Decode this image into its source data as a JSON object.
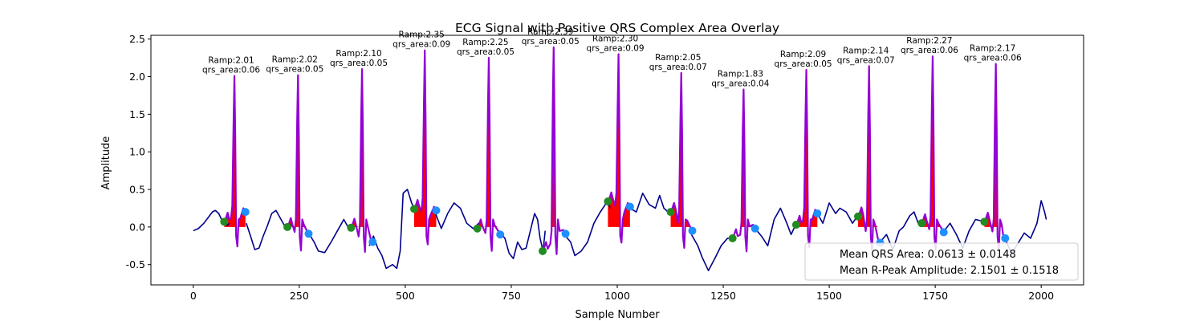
{
  "chart_data": {
    "type": "line",
    "title": "ECG Signal with Positive QRS Complex Area Overlay",
    "xlabel": "Sample Number",
    "ylabel": "Amplitude",
    "xlim": [
      -100,
      2100
    ],
    "ylim": [
      -0.77,
      2.55
    ],
    "xticks": [
      0,
      250,
      500,
      750,
      1000,
      1250,
      1500,
      1750,
      2000
    ],
    "yticks": [
      -0.5,
      0.0,
      0.5,
      1.0,
      1.5,
      2.0,
      2.5
    ],
    "grid": false,
    "colors": {
      "signal": "#00008b",
      "qrs_segment": "#9400d3",
      "qrs_area_fill": "#ff0000",
      "qrs_onset_marker": "#228b22",
      "qrs_offset_marker": "#1e90ff"
    },
    "baseline": [
      [
        0,
        -0.05
      ],
      [
        12,
        -0.02
      ],
      [
        25,
        0.05
      ],
      [
        37,
        0.14
      ],
      [
        45,
        0.2
      ],
      [
        52,
        0.22
      ],
      [
        60,
        0.18
      ],
      [
        65,
        0.12
      ],
      [
        70,
        0.04
      ],
      [
        75,
        0.06
      ],
      [
        80,
        0.02
      ],
      [
        85,
        0.05
      ],
      [
        125,
        0.05
      ],
      [
        135,
        -0.12
      ],
      [
        145,
        -0.3
      ],
      [
        155,
        -0.28
      ],
      [
        165,
        -0.12
      ],
      [
        175,
        0.02
      ],
      [
        185,
        0.18
      ],
      [
        195,
        0.22
      ],
      [
        205,
        0.12
      ],
      [
        215,
        0.02
      ],
      [
        220,
        0.0
      ],
      [
        230,
        0.04
      ],
      [
        270,
        -0.06
      ],
      [
        285,
        -0.2
      ],
      [
        295,
        -0.32
      ],
      [
        310,
        -0.34
      ],
      [
        325,
        -0.2
      ],
      [
        340,
        -0.05
      ],
      [
        355,
        0.1
      ],
      [
        365,
        0.0
      ],
      [
        370,
        -0.02
      ],
      [
        378,
        0.05
      ],
      [
        415,
        -0.25
      ],
      [
        425,
        -0.12
      ],
      [
        435,
        -0.28
      ],
      [
        445,
        -0.38
      ],
      [
        455,
        -0.55
      ],
      [
        470,
        -0.5
      ],
      [
        480,
        -0.55
      ],
      [
        488,
        -0.32
      ],
      [
        495,
        0.45
      ],
      [
        505,
        0.5
      ],
      [
        515,
        0.32
      ],
      [
        521,
        0.25
      ],
      [
        525,
        0.2
      ],
      [
        570,
        0.2
      ],
      [
        585,
        -0.02
      ],
      [
        600,
        0.18
      ],
      [
        615,
        0.32
      ],
      [
        630,
        0.25
      ],
      [
        645,
        0.05
      ],
      [
        660,
        -0.02
      ],
      [
        668,
        0.02
      ],
      [
        675,
        0.06
      ],
      [
        720,
        -0.05
      ],
      [
        735,
        -0.15
      ],
      [
        745,
        -0.35
      ],
      [
        755,
        -0.42
      ],
      [
        765,
        -0.2
      ],
      [
        775,
        -0.3
      ],
      [
        785,
        -0.28
      ],
      [
        795,
        -0.05
      ],
      [
        805,
        0.18
      ],
      [
        812,
        0.1
      ],
      [
        818,
        -0.15
      ],
      [
        825,
        -0.32
      ],
      [
        830,
        -0.05
      ],
      [
        875,
        -0.1
      ],
      [
        890,
        -0.2
      ],
      [
        900,
        -0.38
      ],
      [
        915,
        -0.32
      ],
      [
        930,
        -0.2
      ],
      [
        945,
        0.05
      ],
      [
        960,
        0.2
      ],
      [
        972,
        0.3
      ],
      [
        978,
        0.34
      ],
      [
        983,
        0.25
      ],
      [
        1030,
        0.25
      ],
      [
        1045,
        0.2
      ],
      [
        1060,
        0.45
      ],
      [
        1075,
        0.3
      ],
      [
        1090,
        0.25
      ],
      [
        1100,
        0.42
      ],
      [
        1110,
        0.25
      ],
      [
        1120,
        0.2
      ],
      [
        1126,
        0.22
      ],
      [
        1175,
        -0.1
      ],
      [
        1190,
        -0.25
      ],
      [
        1200,
        -0.4
      ],
      [
        1215,
        -0.58
      ],
      [
        1230,
        -0.42
      ],
      [
        1245,
        -0.25
      ],
      [
        1260,
        -0.15
      ],
      [
        1272,
        -0.15
      ],
      [
        1280,
        -0.05
      ],
      [
        1325,
        -0.02
      ],
      [
        1340,
        -0.12
      ],
      [
        1355,
        -0.25
      ],
      [
        1370,
        0.1
      ],
      [
        1385,
        0.25
      ],
      [
        1400,
        0.05
      ],
      [
        1410,
        -0.1
      ],
      [
        1420,
        0.02
      ],
      [
        1428,
        0.05
      ],
      [
        1472,
        0.18
      ],
      [
        1485,
        0.05
      ],
      [
        1500,
        0.32
      ],
      [
        1515,
        0.18
      ],
      [
        1525,
        0.25
      ],
      [
        1540,
        0.2
      ],
      [
        1555,
        0.05
      ],
      [
        1566,
        0.14
      ],
      [
        1572,
        0.18
      ],
      [
        1620,
        -0.2
      ],
      [
        1635,
        -0.1
      ],
      [
        1650,
        -0.3
      ],
      [
        1665,
        -0.05
      ],
      [
        1675,
        0.0
      ],
      [
        1690,
        0.15
      ],
      [
        1700,
        0.2
      ],
      [
        1710,
        0.05
      ],
      [
        1716,
        0.04
      ],
      [
        1722,
        0.08
      ],
      [
        1770,
        -0.06
      ],
      [
        1785,
        0.05
      ],
      [
        1800,
        -0.1
      ],
      [
        1815,
        -0.28
      ],
      [
        1830,
        -0.05
      ],
      [
        1845,
        0.1
      ],
      [
        1860,
        0.08
      ],
      [
        1865,
        0.07
      ],
      [
        1870,
        0.1
      ],
      [
        1915,
        -0.16
      ],
      [
        1930,
        -0.35
      ],
      [
        1945,
        -0.22
      ],
      [
        1960,
        -0.08
      ],
      [
        1975,
        -0.15
      ],
      [
        1990,
        0.05
      ],
      [
        2000,
        0.35
      ],
      [
        2008,
        0.2
      ],
      [
        2012,
        0.1
      ]
    ],
    "beats": [
      {
        "onset_x": 73,
        "onset_y": 0.07,
        "peak_x": 97,
        "peak_y": 2.01,
        "offset_x": 123,
        "offset_y": 0.2,
        "ramp_label": "Ramp:2.01",
        "area_label": "qrs_area:0.06"
      },
      {
        "onset_x": 222,
        "onset_y": 0.0,
        "peak_x": 247,
        "peak_y": 2.02,
        "offset_x": 272,
        "offset_y": -0.09,
        "ramp_label": "Ramp:2.02",
        "area_label": "qrs_area:0.05"
      },
      {
        "onset_x": 372,
        "onset_y": -0.01,
        "peak_x": 398,
        "peak_y": 2.1,
        "offset_x": 423,
        "offset_y": -0.2,
        "ramp_label": "Ramp:2.10",
        "area_label": "qrs_area:0.05"
      },
      {
        "onset_x": 521,
        "onset_y": 0.24,
        "peak_x": 546,
        "peak_y": 2.35,
        "offset_x": 573,
        "offset_y": 0.22,
        "ramp_label": "Ramp:2.35",
        "area_label": "qrs_area:0.09"
      },
      {
        "onset_x": 670,
        "onset_y": -0.02,
        "peak_x": 697,
        "peak_y": 2.25,
        "offset_x": 724,
        "offset_y": -0.1,
        "ramp_label": "Ramp:2.25",
        "area_label": "qrs_area:0.05"
      },
      {
        "onset_x": 824,
        "onset_y": -0.32,
        "peak_x": 850,
        "peak_y": 2.39,
        "offset_x": 878,
        "offset_y": -0.09,
        "ramp_label": "Ramp:2.39",
        "area_label": "qrs_area:0.05"
      },
      {
        "onset_x": 978,
        "onset_y": 0.34,
        "peak_x": 1003,
        "peak_y": 2.3,
        "offset_x": 1030,
        "offset_y": 0.27,
        "ramp_label": "Ramp:2.30",
        "area_label": "qrs_area:0.09"
      },
      {
        "onset_x": 1126,
        "onset_y": 0.2,
        "peak_x": 1151,
        "peak_y": 2.05,
        "offset_x": 1177,
        "offset_y": -0.05,
        "ramp_label": "Ramp:2.05",
        "area_label": "qrs_area:0.07"
      },
      {
        "onset_x": 1272,
        "onset_y": -0.15,
        "peak_x": 1298,
        "peak_y": 1.83,
        "offset_x": 1325,
        "offset_y": -0.02,
        "ramp_label": "Ramp:1.83",
        "area_label": "qrs_area:0.04"
      },
      {
        "onset_x": 1422,
        "onset_y": 0.03,
        "peak_x": 1446,
        "peak_y": 2.09,
        "offset_x": 1472,
        "offset_y": 0.18,
        "ramp_label": "Ramp:2.09",
        "area_label": "qrs_area:0.05"
      },
      {
        "onset_x": 1568,
        "onset_y": 0.14,
        "peak_x": 1594,
        "peak_y": 2.14,
        "offset_x": 1620,
        "offset_y": -0.21,
        "ramp_label": "Ramp:2.14",
        "area_label": "qrs_area:0.07"
      },
      {
        "onset_x": 1718,
        "onset_y": 0.05,
        "peak_x": 1744,
        "peak_y": 2.27,
        "offset_x": 1770,
        "offset_y": -0.07,
        "ramp_label": "Ramp:2.27",
        "area_label": "qrs_area:0.06"
      },
      {
        "onset_x": 1866,
        "onset_y": 0.07,
        "peak_x": 1893,
        "peak_y": 2.17,
        "offset_x": 1915,
        "offset_y": -0.15,
        "ramp_label": "Ramp:2.17",
        "area_label": "qrs_area:0.06"
      }
    ],
    "legend": {
      "placement": "lower-right",
      "entries": [
        "Mean QRS Area: 0.0613 ± 0.0148",
        "Mean R-Peak Amplitude: 2.1501 ± 0.1518"
      ]
    }
  }
}
